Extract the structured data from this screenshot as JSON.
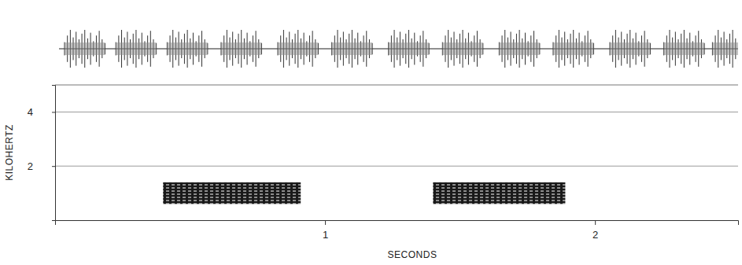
{
  "chart_data": {
    "type": "spectrogram",
    "x_label": "SECONDS",
    "y_label": "KILOHERTZ",
    "xlim": [
      0,
      2.53
    ],
    "xticks": [
      1,
      2
    ],
    "ylim": [
      0,
      5
    ],
    "yticks": [
      2,
      4
    ],
    "grid": true,
    "color": "#1a1a1a",
    "pulses": [
      {
        "start": 0.4,
        "end": 0.91,
        "freq_low": 0.6,
        "freq_high": 1.4
      },
      {
        "start": 1.4,
        "end": 1.89,
        "freq_low": 0.6,
        "freq_high": 1.4
      }
    ],
    "oscillogram": {
      "burst_times": [
        0.11,
        0.3,
        0.49,
        0.69,
        0.9,
        1.1,
        1.31,
        1.51,
        1.72,
        1.92,
        2.13,
        2.33,
        2.51
      ]
    }
  }
}
